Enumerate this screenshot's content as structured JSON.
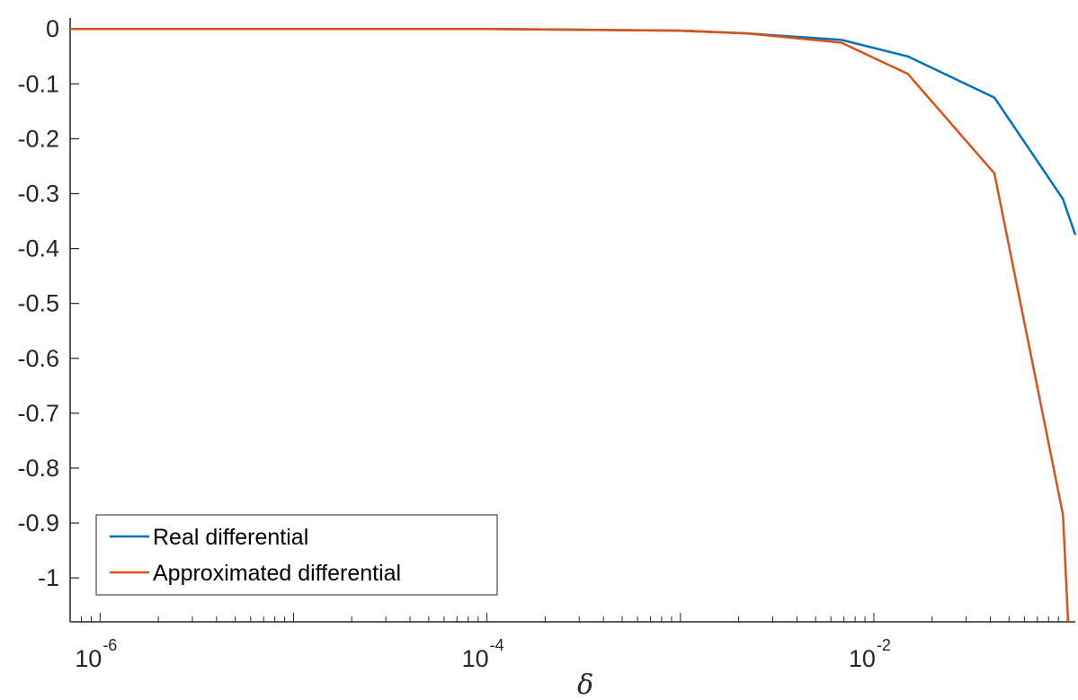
{
  "chart_data": {
    "type": "line",
    "xscale": "log",
    "xlim": [
      7e-07,
      0.11
    ],
    "ylim": [
      -1.08,
      0.02
    ],
    "xlabel": "δ",
    "ylabel": "",
    "title": "",
    "x_ticks": [
      {
        "base": "10",
        "exp": "-6",
        "value": 1e-06
      },
      {
        "base": "10",
        "exp": "-4",
        "value": 0.0001
      },
      {
        "base": "10",
        "exp": "-2",
        "value": 0.01
      }
    ],
    "y_ticks": [
      {
        "label": "0",
        "value": 0
      },
      {
        "label": "-0.1",
        "value": -0.1
      },
      {
        "label": "-0.2",
        "value": -0.2
      },
      {
        "label": "-0.3",
        "value": -0.3
      },
      {
        "label": "-0.4",
        "value": -0.4
      },
      {
        "label": "-0.5",
        "value": -0.5
      },
      {
        "label": "-0.6",
        "value": -0.6
      },
      {
        "label": "-0.7",
        "value": -0.7
      },
      {
        "label": "-0.8",
        "value": -0.8
      },
      {
        "label": "-0.9",
        "value": -0.9
      },
      {
        "label": "-1",
        "value": -1.0
      }
    ],
    "grid": false,
    "legend_position": "bottom-left",
    "series": [
      {
        "name": "Real differential",
        "color": "#0072BD",
        "x": [
          7e-07,
          3e-05,
          0.0001,
          0.001,
          0.0022,
          0.0068,
          0.015,
          0.042,
          0.095,
          0.11
        ],
        "y": [
          0,
          0,
          0,
          -0.003,
          -0.008,
          -0.02,
          -0.05,
          -0.125,
          -0.31,
          -0.375
        ]
      },
      {
        "name": "Approximated differential",
        "color": "#D95319",
        "x": [
          7e-07,
          3e-05,
          0.0001,
          0.001,
          0.0022,
          0.0068,
          0.015,
          0.042,
          0.095,
          0.1,
          0.101
        ],
        "y": [
          0,
          0,
          0,
          -0.003,
          -0.008,
          -0.025,
          -0.082,
          -0.263,
          -0.885,
          -1.05,
          -1.08
        ]
      }
    ]
  }
}
